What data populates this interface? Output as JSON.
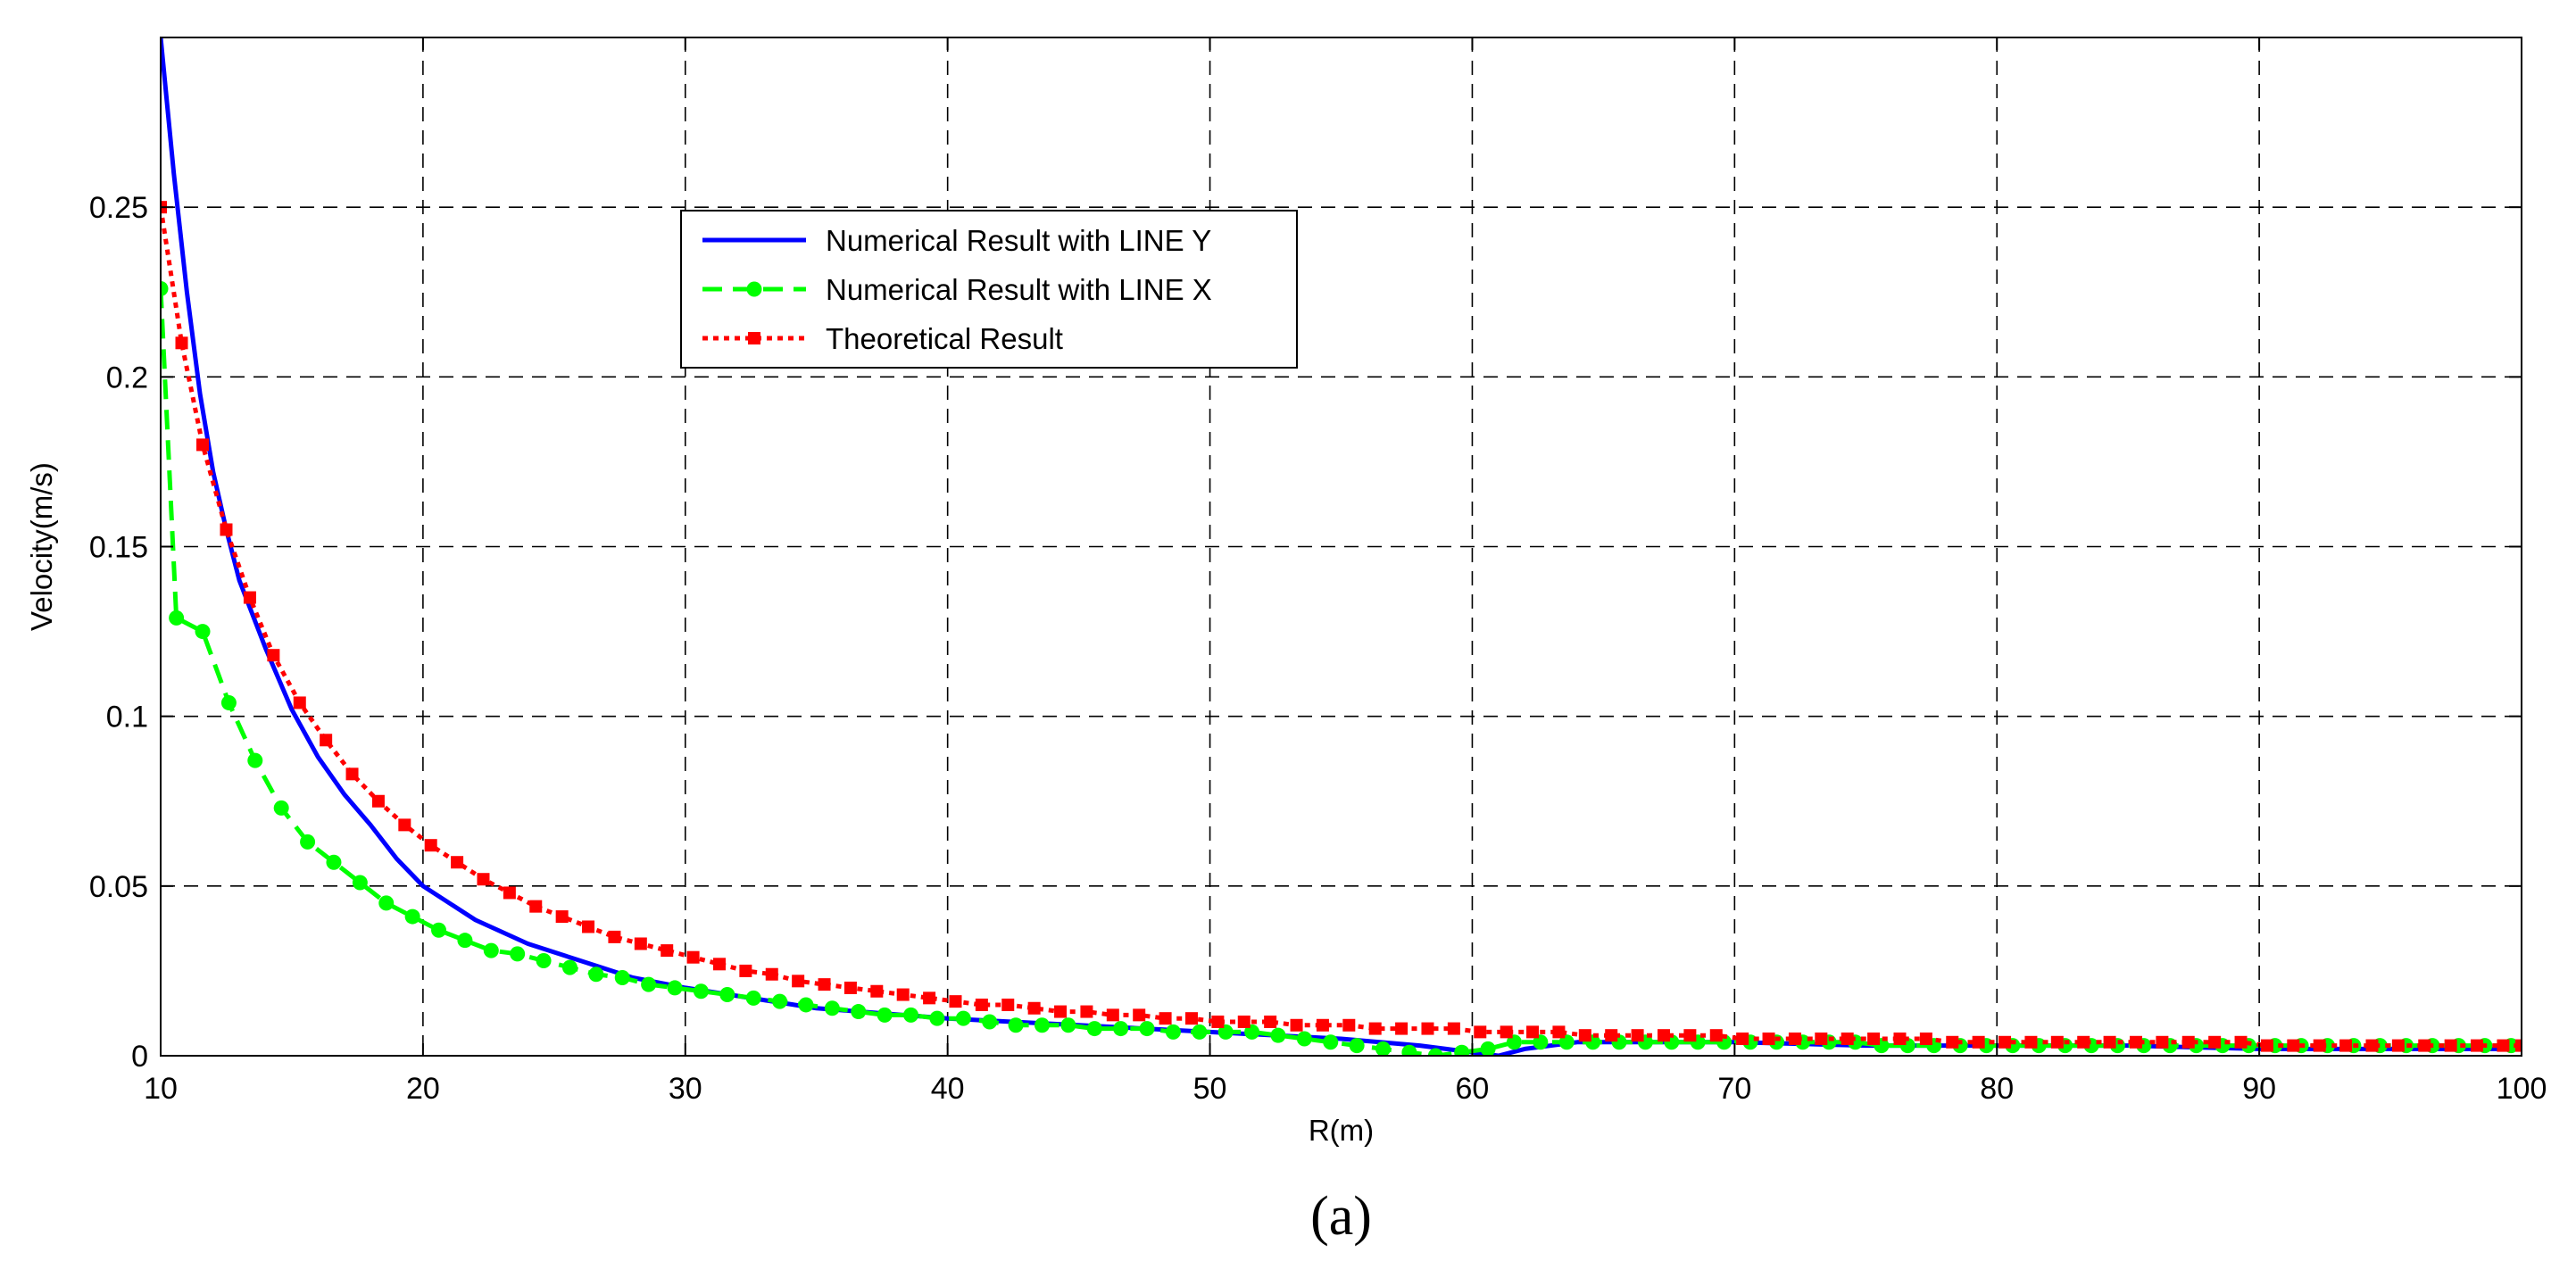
{
  "caption": "(a)",
  "chart_data": {
    "type": "line",
    "title": "",
    "xlabel": "R(m)",
    "ylabel": "Velocity(m/s)",
    "xlim": [
      10,
      100
    ],
    "ylim": [
      0,
      0.3
    ],
    "x_ticks": [
      "10",
      "20",
      "30",
      "40",
      "50",
      "60",
      "70",
      "80",
      "90",
      "100"
    ],
    "y_ticks": [
      "0",
      "0.05",
      "0.1",
      "0.15",
      "0.2",
      "0.25"
    ],
    "grid": true,
    "legend_position": "upper-center",
    "series": [
      {
        "name": "Numerical Result with LINE Y",
        "color": "#0000ff",
        "line_style": "solid",
        "marker": "none",
        "x": [
          10,
          10.5,
          11,
          11.5,
          12,
          12.5,
          13,
          14,
          15,
          16,
          17,
          18,
          19,
          20,
          22,
          24,
          26,
          28,
          30,
          35,
          40,
          45,
          50,
          55,
          58,
          59,
          60,
          61,
          62,
          64,
          65,
          70,
          75,
          80,
          85,
          90,
          95,
          100
        ],
        "y": [
          0.3,
          0.26,
          0.225,
          0.195,
          0.172,
          0.155,
          0.14,
          0.12,
          0.102,
          0.088,
          0.077,
          0.068,
          0.058,
          0.05,
          0.04,
          0.033,
          0.028,
          0.023,
          0.02,
          0.014,
          0.011,
          0.009,
          0.007,
          0.005,
          0.003,
          0.002,
          0.001,
          0.0,
          0.002,
          0.004,
          0.004,
          0.004,
          0.003,
          0.003,
          0.003,
          0.002,
          0.002,
          0.002
        ]
      },
      {
        "name": "Numerical Result with LINE X",
        "color": "#00ff00",
        "line_style": "dashed",
        "marker": "circle",
        "x": [
          10,
          10.6,
          11.6,
          12.6,
          13.6,
          14.6,
          15.6,
          16.6,
          17.6,
          18.6,
          19.6,
          20.6,
          21.6,
          22.6,
          23.6,
          24.6,
          25.6,
          26.6,
          27.6,
          28.6,
          29.6,
          30.6,
          31.6,
          32.6,
          33.6,
          34.6,
          35.6,
          36.6,
          37.6,
          38.6,
          39.6,
          40.6,
          41.6,
          42.6,
          43.6,
          44.6,
          45.6,
          46.6,
          47.6,
          48.6,
          49.6,
          50.6,
          51.6,
          52.6,
          53.6,
          54.6,
          55.6,
          56.6,
          57.6,
          58.6,
          59.6,
          60.6,
          61.6,
          62.6,
          63.6,
          64.6,
          65.6,
          66.6,
          67.6,
          68.6,
          69.6,
          70.6,
          71.6,
          72.6,
          73.6,
          74.6,
          75.6,
          76.6,
          77.6,
          78.6,
          79.6,
          80.6,
          81.6,
          82.6,
          83.6,
          84.6,
          85.6,
          86.6,
          87.6,
          88.6,
          89.6,
          90.6,
          91.6,
          92.6,
          93.6,
          94.6,
          95.6,
          96.6,
          97.6,
          98.6,
          99.6
        ],
        "y": [
          0.226,
          0.129,
          0.125,
          0.104,
          0.087,
          0.073,
          0.063,
          0.057,
          0.051,
          0.045,
          0.041,
          0.037,
          0.034,
          0.031,
          0.03,
          0.028,
          0.026,
          0.024,
          0.023,
          0.021,
          0.02,
          0.019,
          0.018,
          0.017,
          0.016,
          0.015,
          0.014,
          0.013,
          0.012,
          0.012,
          0.011,
          0.011,
          0.01,
          0.009,
          0.009,
          0.009,
          0.008,
          0.008,
          0.008,
          0.007,
          0.007,
          0.007,
          0.007,
          0.006,
          0.005,
          0.004,
          0.003,
          0.002,
          0.001,
          0.0,
          0.001,
          0.002,
          0.004,
          0.004,
          0.004,
          0.004,
          0.004,
          0.004,
          0.004,
          0.004,
          0.004,
          0.004,
          0.004,
          0.004,
          0.004,
          0.004,
          0.003,
          0.003,
          0.003,
          0.003,
          0.003,
          0.003,
          0.003,
          0.003,
          0.003,
          0.003,
          0.003,
          0.003,
          0.003,
          0.003,
          0.003,
          0.003,
          0.003,
          0.003,
          0.003,
          0.003,
          0.003,
          0.003,
          0.003,
          0.003,
          0.003
        ]
      },
      {
        "name": "Theoretical Result",
        "color": "#ff0000",
        "line_style": "dotted",
        "marker": "square",
        "x": [
          10,
          10.8,
          11.6,
          12.5,
          13.4,
          14.3,
          15.3,
          16.3,
          17.3,
          18.3,
          19.3,
          20.3,
          21.3,
          22.3,
          23.3,
          24.3,
          25.3,
          26.3,
          27.3,
          28.3,
          29.3,
          30.3,
          31.3,
          32.3,
          33.3,
          34.3,
          35.3,
          36.3,
          37.3,
          38.3,
          39.3,
          40.3,
          41.3,
          42.3,
          43.3,
          44.3,
          45.3,
          46.3,
          47.3,
          48.3,
          49.3,
          50.3,
          51.3,
          52.3,
          53.3,
          54.3,
          55.3,
          56.3,
          57.3,
          58.3,
          59.3,
          60.3,
          61.3,
          62.3,
          63.3,
          64.3,
          65.3,
          66.3,
          67.3,
          68.3,
          69.3,
          70.3,
          71.3,
          72.3,
          73.3,
          74.3,
          75.3,
          76.3,
          77.3,
          78.3,
          79.3,
          80.3,
          81.3,
          82.3,
          83.3,
          84.3,
          85.3,
          86.3,
          87.3,
          88.3,
          89.3,
          90.3,
          91.3,
          92.3,
          93.3,
          94.3,
          95.3,
          96.3,
          97.3,
          98.3,
          99.3,
          100
        ],
        "y": [
          0.25,
          0.21,
          0.18,
          0.155,
          0.135,
          0.118,
          0.104,
          0.093,
          0.083,
          0.075,
          0.068,
          0.062,
          0.057,
          0.052,
          0.048,
          0.044,
          0.041,
          0.038,
          0.035,
          0.033,
          0.031,
          0.029,
          0.027,
          0.025,
          0.024,
          0.022,
          0.021,
          0.02,
          0.019,
          0.018,
          0.017,
          0.016,
          0.015,
          0.015,
          0.014,
          0.013,
          0.013,
          0.012,
          0.012,
          0.011,
          0.011,
          0.01,
          0.01,
          0.01,
          0.009,
          0.009,
          0.009,
          0.008,
          0.008,
          0.008,
          0.008,
          0.007,
          0.007,
          0.007,
          0.007,
          0.006,
          0.006,
          0.006,
          0.006,
          0.006,
          0.006,
          0.005,
          0.005,
          0.005,
          0.005,
          0.005,
          0.005,
          0.005,
          0.005,
          0.004,
          0.004,
          0.004,
          0.004,
          0.004,
          0.004,
          0.004,
          0.004,
          0.004,
          0.004,
          0.004,
          0.004,
          0.003,
          0.003,
          0.003,
          0.003,
          0.003,
          0.003,
          0.003,
          0.003,
          0.003,
          0.003,
          0.003
        ]
      }
    ]
  }
}
